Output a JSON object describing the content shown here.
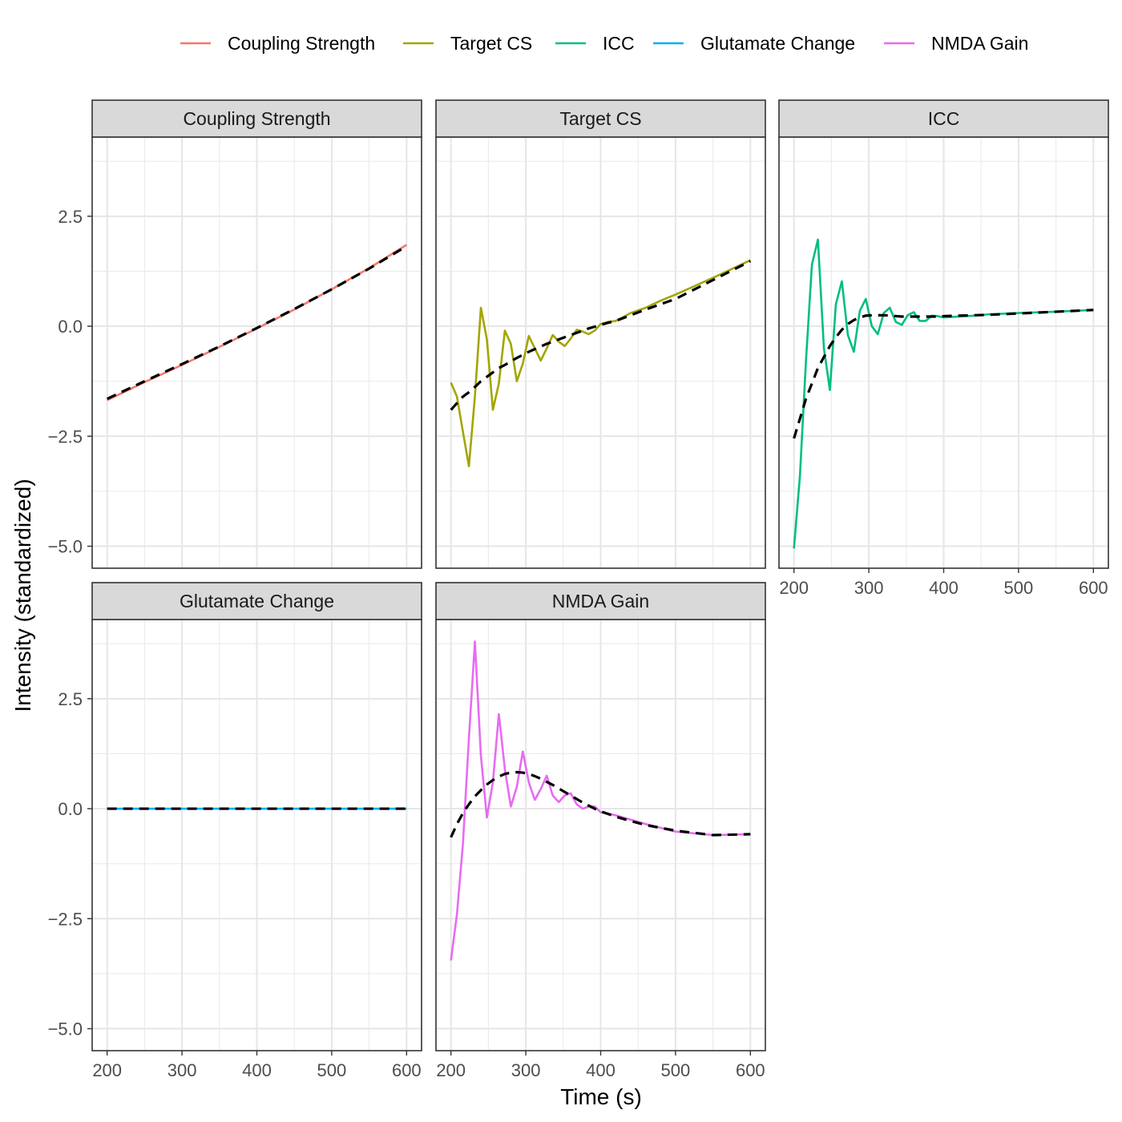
{
  "chart_data": {
    "type": "line",
    "layout": "facet-wrap 3 columns, shared axes",
    "xlabel": "Time (s)",
    "ylabel": "Intensity (standardized)",
    "xlim": [
      180,
      620
    ],
    "ylim": [
      -5.5,
      4.3
    ],
    "x_ticks": [
      200,
      300,
      400,
      500,
      600
    ],
    "x_tick_labels": [
      "200",
      "300",
      "400",
      "500",
      "600"
    ],
    "y_ticks": [
      2.5,
      0.0,
      -2.5,
      -5.0
    ],
    "y_tick_labels": [
      "2.5",
      "0.0",
      "−2.5",
      "−5.0"
    ],
    "legend_position": "top",
    "grid": true,
    "trend_line": {
      "style": "black dashed",
      "description": "smoothed trend overlay"
    },
    "series": [
      {
        "name": "Coupling Strength",
        "color": "#F8766D",
        "x": [
          200,
          250,
          300,
          350,
          400,
          450,
          500,
          550,
          600
        ],
        "values": [
          -1.68,
          -1.27,
          -0.88,
          -0.47,
          -0.05,
          0.38,
          0.84,
          1.32,
          1.85
        ],
        "trend": [
          -1.65,
          -1.25,
          -0.86,
          -0.46,
          -0.04,
          0.39,
          0.84,
          1.31,
          1.82
        ]
      },
      {
        "name": "Target CS",
        "color": "#A3A500",
        "x": [
          200,
          208,
          216,
          224,
          232,
          240,
          248,
          256,
          264,
          272,
          280,
          288,
          296,
          304,
          312,
          320,
          328,
          336,
          344,
          352,
          360,
          368,
          376,
          384,
          392,
          400,
          410,
          420,
          440,
          460,
          480,
          500,
          550,
          600
        ],
        "values": [
          -1.28,
          -1.6,
          -2.4,
          -3.18,
          -1.6,
          0.42,
          -0.3,
          -1.9,
          -1.3,
          -0.1,
          -0.4,
          -1.25,
          -0.85,
          -0.22,
          -0.5,
          -0.78,
          -0.5,
          -0.2,
          -0.35,
          -0.45,
          -0.28,
          -0.08,
          -0.12,
          -0.18,
          -0.1,
          0.05,
          0.1,
          0.12,
          0.3,
          0.42,
          0.58,
          0.72,
          1.1,
          1.5
        ],
        "trend": [
          -1.9,
          -1.75,
          -1.6,
          -1.5,
          -1.38,
          -1.25,
          -1.15,
          -1.05,
          -0.95,
          -0.88,
          -0.8,
          -0.72,
          -0.65,
          -0.58,
          -0.52,
          -0.46,
          -0.4,
          -0.35,
          -0.3,
          -0.25,
          -0.2,
          -0.15,
          -0.1,
          -0.05,
          -0.01,
          0.03,
          0.08,
          0.12,
          0.25,
          0.38,
          0.5,
          0.62,
          1.05,
          1.48
        ]
      },
      {
        "name": "ICC",
        "color": "#00BF7D",
        "x": [
          200,
          208,
          216,
          224,
          232,
          240,
          248,
          256,
          264,
          272,
          280,
          288,
          296,
          304,
          312,
          320,
          328,
          336,
          344,
          352,
          360,
          368,
          376,
          384,
          392,
          400,
          420,
          440,
          460,
          500,
          550,
          600
        ],
        "values": [
          -5.05,
          -3.4,
          -0.8,
          1.4,
          1.97,
          -0.5,
          -1.45,
          0.5,
          1.02,
          -0.2,
          -0.58,
          0.35,
          0.62,
          0.0,
          -0.18,
          0.3,
          0.42,
          0.1,
          0.03,
          0.25,
          0.32,
          0.12,
          0.12,
          0.24,
          0.23,
          0.2,
          0.22,
          0.24,
          0.27,
          0.3,
          0.33,
          0.37
        ],
        "trend": [
          -2.55,
          -2.1,
          -1.65,
          -1.3,
          -0.95,
          -0.7,
          -0.45,
          -0.25,
          -0.08,
          0.05,
          0.14,
          0.2,
          0.24,
          0.25,
          0.25,
          0.25,
          0.24,
          0.23,
          0.22,
          0.22,
          0.22,
          0.22,
          0.22,
          0.22,
          0.22,
          0.23,
          0.24,
          0.25,
          0.26,
          0.29,
          0.33,
          0.37
        ]
      },
      {
        "name": "Glutamate Change",
        "color": "#00B0F6",
        "x": [
          200,
          300,
          400,
          500,
          600
        ],
        "values": [
          0.0,
          0.0,
          0.0,
          0.0,
          0.0
        ],
        "trend": [
          0.0,
          0.0,
          0.0,
          0.0,
          0.0
        ]
      },
      {
        "name": "NMDA Gain",
        "color": "#E76BF3",
        "x": [
          200,
          208,
          216,
          224,
          232,
          240,
          248,
          256,
          264,
          272,
          280,
          288,
          296,
          304,
          312,
          320,
          328,
          336,
          344,
          352,
          360,
          368,
          376,
          384,
          392,
          400,
          420,
          440,
          460,
          500,
          550,
          600
        ],
        "values": [
          -3.45,
          -2.4,
          -0.8,
          1.6,
          3.8,
          1.2,
          -0.2,
          0.6,
          2.15,
          0.9,
          0.05,
          0.5,
          1.3,
          0.6,
          0.2,
          0.45,
          0.75,
          0.3,
          0.15,
          0.3,
          0.35,
          0.1,
          0.0,
          0.05,
          0.05,
          -0.08,
          -0.15,
          -0.25,
          -0.35,
          -0.52,
          -0.6,
          -0.58
        ],
        "trend": [
          -0.65,
          -0.35,
          -0.1,
          0.1,
          0.28,
          0.42,
          0.55,
          0.65,
          0.73,
          0.79,
          0.82,
          0.83,
          0.82,
          0.79,
          0.74,
          0.68,
          0.61,
          0.54,
          0.46,
          0.38,
          0.3,
          0.22,
          0.14,
          0.07,
          0.0,
          -0.06,
          -0.18,
          -0.28,
          -0.37,
          -0.5,
          -0.6,
          -0.58
        ]
      }
    ]
  }
}
